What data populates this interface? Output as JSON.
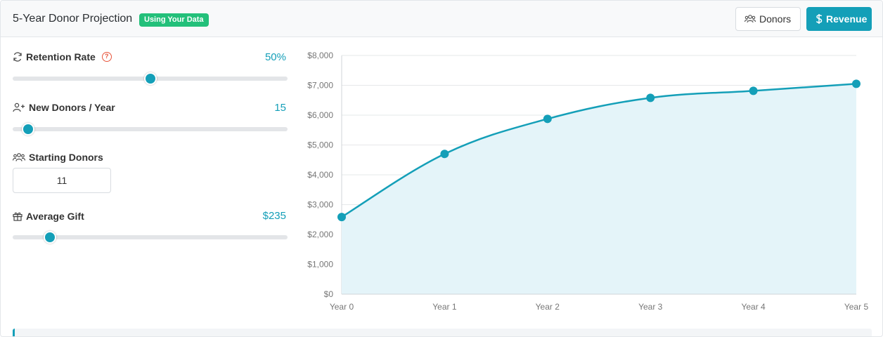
{
  "header": {
    "title": "5-Year Donor Projection",
    "badge": "Using Your Data",
    "buttons": {
      "donors": "Donors",
      "revenue": "Revenue"
    }
  },
  "controls": {
    "retention": {
      "label": "Retention Rate",
      "value_text": "50%",
      "fraction": 0.5
    },
    "new_donors": {
      "label": "New Donors / Year",
      "value_text": "15",
      "fraction": 0.055
    },
    "starting_donors": {
      "label": "Starting Donors",
      "value": "11"
    },
    "average_gift": {
      "label": "Average Gift",
      "value_text": "$235",
      "fraction": 0.135
    }
  },
  "colors": {
    "accent": "#149fb8",
    "badge": "#23c07a",
    "help": "#e8543b",
    "area_fill": "#e4f4f9"
  },
  "chart_data": {
    "type": "area",
    "categories": [
      "Year 0",
      "Year 1",
      "Year 2",
      "Year 3",
      "Year 4",
      "Year 5"
    ],
    "values": [
      2585,
      4700,
      5875,
      6580,
      6815,
      7050
    ],
    "y_ticks": [
      "$0",
      "$1,000",
      "$2,000",
      "$3,000",
      "$4,000",
      "$5,000",
      "$6,000",
      "$7,000",
      "$8,000"
    ],
    "ylim": [
      0,
      8000
    ],
    "grid": true,
    "title": "",
    "xlabel": "",
    "ylabel": ""
  }
}
